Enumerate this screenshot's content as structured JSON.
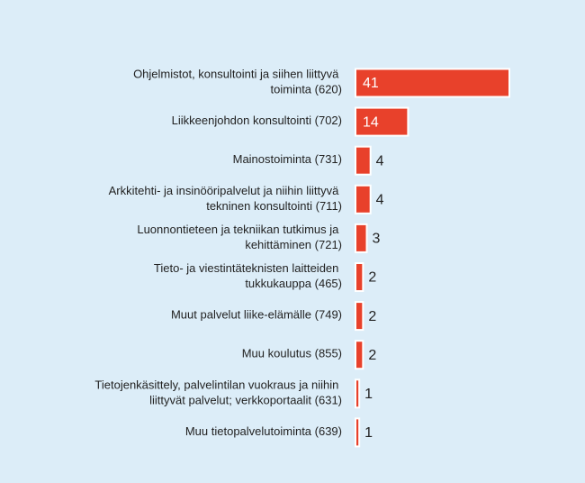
{
  "chart_data": {
    "type": "bar",
    "orientation": "horizontal",
    "categories": [
      "Ohjelmistot, konsultointi ja siihen liittyvä toiminta (620)",
      "Liikkeenjohdon konsultointi (702)",
      "Mainostoiminta (731)",
      "Arkkitehti- ja insinööripalvelut ja niihin liittyvä tekninen konsultointi (711)",
      "Luonnontieteen ja tekniikan tutkimus ja kehittäminen (721)",
      "Tieto- ja viestintäteknisten laitteiden tukkukauppa (465)",
      "Muut palvelut liike-elämälle (749)",
      "Muu koulutus (855)",
      "Tietojenkäsittely, palvelintilan vuokraus ja niihin liittyvät palvelut; verkkoportaalit (631)",
      "Muu tietopalvelutoiminta (639)"
    ],
    "values": [
      41,
      14,
      4,
      4,
      3,
      2,
      2,
      2,
      1,
      1
    ],
    "color": "#e8412b"
  }
}
